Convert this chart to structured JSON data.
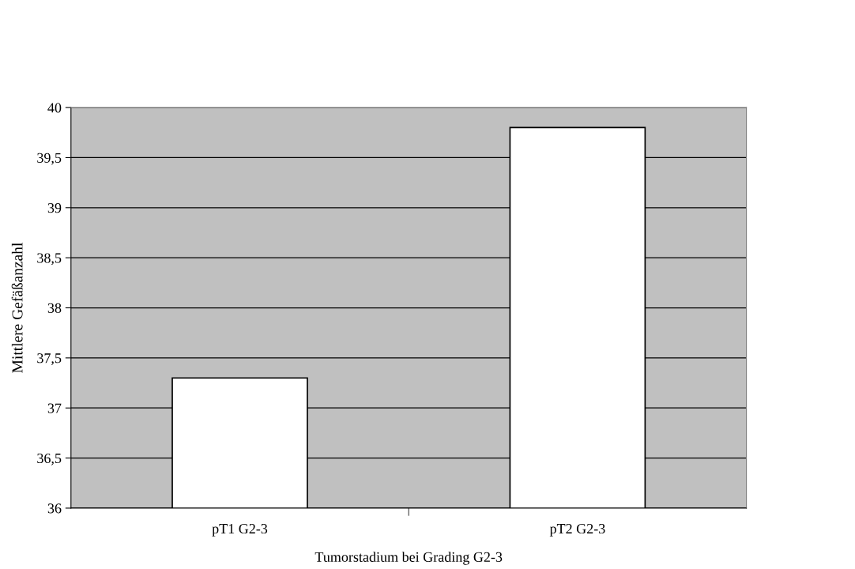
{
  "chart_data": {
    "type": "bar",
    "xlabel": "Tumorstadium bei Grading G2-3",
    "ylabel": "Mittlere Gefäßanzahl",
    "categories": [
      "pT1 G2-3",
      "pT2 G2-3"
    ],
    "values": [
      37.3,
      39.8
    ],
    "color": "#ffffff",
    "ylim": [
      36,
      40
    ],
    "yticks": [
      36,
      {
        "value": 36.5,
        "label": "36,5"
      },
      37,
      {
        "value": 37.5,
        "label": "37,5"
      },
      38,
      {
        "value": 38.5,
        "label": "38,5"
      },
      39,
      {
        "value": 39.5,
        "label": "39,5"
      },
      40
    ],
    "grid": "y"
  }
}
